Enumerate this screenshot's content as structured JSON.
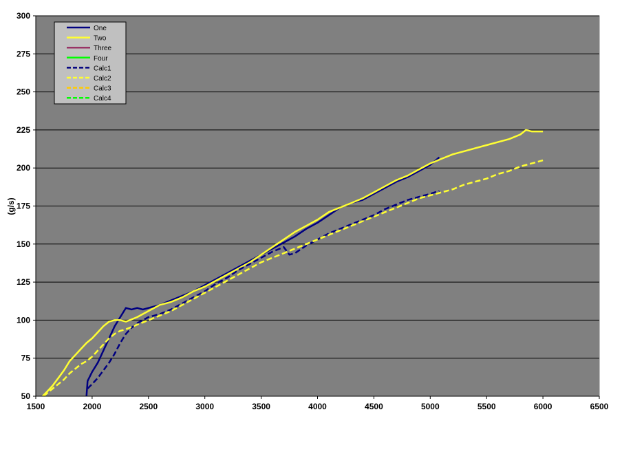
{
  "chart_data": {
    "type": "line",
    "title": "",
    "xlabel": "",
    "ylabel": "(g/s)",
    "xlim": [
      1500,
      6500
    ],
    "ylim": [
      50,
      300
    ],
    "x_ticks": [
      1500,
      2000,
      2500,
      3000,
      3500,
      4000,
      4500,
      5000,
      5500,
      6000,
      6500
    ],
    "y_ticks": [
      50,
      75,
      100,
      125,
      150,
      175,
      200,
      225,
      250,
      275,
      300
    ],
    "grid": "horizontal",
    "plot_background": "#808080",
    "legend_placement": "top-left",
    "series": [
      {
        "name": "One",
        "color": "#000080",
        "dash": "solid",
        "x": [
          1950,
          1960,
          2000,
          2050,
          2100,
          2150,
          2200,
          2250,
          2300,
          2350,
          2400,
          2450,
          2500,
          2600,
          2700,
          2800,
          2900,
          3000,
          3100,
          3200,
          3300,
          3400,
          3500,
          3600,
          3700,
          3800,
          3900,
          4000,
          4100,
          4200,
          4300,
          4400,
          4500,
          4600,
          4700,
          4800,
          4900,
          5000,
          5080
        ],
        "y": [
          50,
          60,
          66,
          72,
          80,
          88,
          96,
          102,
          108,
          107,
          108,
          107,
          108,
          110,
          113,
          116,
          119,
          123,
          127,
          131,
          135,
          139,
          143,
          147,
          151,
          155,
          160,
          164,
          169,
          174,
          177,
          179,
          183,
          187,
          191,
          194,
          198,
          202,
          207
        ]
      },
      {
        "name": "Two",
        "color": "#ffff33",
        "dash": "solid",
        "x": [
          1560,
          1600,
          1650,
          1700,
          1750,
          1800,
          1850,
          1900,
          1950,
          2000,
          2050,
          2100,
          2150,
          2200,
          2250,
          2300,
          2400,
          2500,
          2600,
          2700,
          2800,
          2900,
          3000,
          3100,
          3200,
          3300,
          3400,
          3500,
          3600,
          3700,
          3800,
          3900,
          4000,
          4100,
          4200,
          4300,
          4400,
          4500,
          4600,
          4700,
          4800,
          4900,
          5000,
          5100,
          5200,
          5300,
          5400,
          5500,
          5600,
          5700,
          5800,
          5850,
          5900,
          6000
        ],
        "y": [
          50,
          53,
          57,
          62,
          67,
          73,
          77,
          81,
          85,
          88,
          92,
          96,
          99,
          100,
          100,
          99,
          102,
          106,
          110,
          112,
          115,
          119,
          122,
          126,
          130,
          134,
          138,
          143,
          148,
          153,
          158,
          162,
          166,
          171,
          174,
          177,
          180,
          184,
          188,
          192,
          195,
          199,
          203,
          206,
          209,
          211,
          213,
          215,
          217,
          219,
          222,
          225,
          224,
          224
        ]
      },
      {
        "name": "Three",
        "color": "#993366",
        "dash": "solid",
        "x": [],
        "y": []
      },
      {
        "name": "Four",
        "color": "#00ff00",
        "dash": "solid",
        "x": [],
        "y": []
      },
      {
        "name": "Calc1",
        "color": "#000080",
        "dash": "dashed",
        "x": [
          1960,
          2000,
          2050,
          2100,
          2150,
          2200,
          2250,
          2300,
          2350,
          2400,
          2450,
          2500,
          2600,
          2700,
          2800,
          2900,
          3000,
          3100,
          3200,
          3300,
          3400,
          3500,
          3600,
          3700,
          3750,
          3800,
          3900,
          4000,
          4100,
          4200,
          4300,
          4400,
          4500,
          4600,
          4700,
          4800,
          4900,
          5000,
          5080
        ],
        "y": [
          55,
          58,
          62,
          67,
          72,
          78,
          85,
          91,
          95,
          98,
          100,
          102,
          104,
          107,
          111,
          115,
          119,
          124,
          128,
          133,
          137,
          141,
          145,
          148,
          143,
          144,
          149,
          153,
          157,
          160,
          163,
          166,
          169,
          173,
          176,
          179,
          181,
          183,
          185
        ]
      },
      {
        "name": "Calc2",
        "color": "#ffff33",
        "dash": "dashed",
        "x": [
          1570,
          1600,
          1650,
          1700,
          1750,
          1800,
          1850,
          1900,
          1950,
          2000,
          2050,
          2100,
          2150,
          2200,
          2250,
          2300,
          2400,
          2500,
          2600,
          2700,
          2800,
          2900,
          3000,
          3100,
          3200,
          3300,
          3400,
          3500,
          3600,
          3700,
          3800,
          3900,
          4000,
          4100,
          4200,
          4300,
          4400,
          4500,
          4600,
          4700,
          4800,
          4900,
          5000,
          5100,
          5200,
          5300,
          5400,
          5500,
          5600,
          5700,
          5800,
          5900,
          6000
        ],
        "y": [
          50,
          52,
          55,
          58,
          61,
          65,
          68,
          71,
          73,
          76,
          80,
          84,
          88,
          91,
          93,
          94,
          97,
          100,
          103,
          106,
          110,
          114,
          118,
          122,
          126,
          130,
          134,
          138,
          141,
          144,
          147,
          150,
          153,
          156,
          159,
          162,
          165,
          168,
          171,
          174,
          177,
          180,
          182,
          184,
          186,
          189,
          191,
          193,
          196,
          198,
          201,
          203,
          205
        ]
      },
      {
        "name": "Calc3",
        "color": "#ffcc00",
        "dash": "dashed",
        "x": [],
        "y": []
      },
      {
        "name": "Calc4",
        "color": "#00ff00",
        "dash": "dashed",
        "x": [],
        "y": []
      }
    ]
  }
}
